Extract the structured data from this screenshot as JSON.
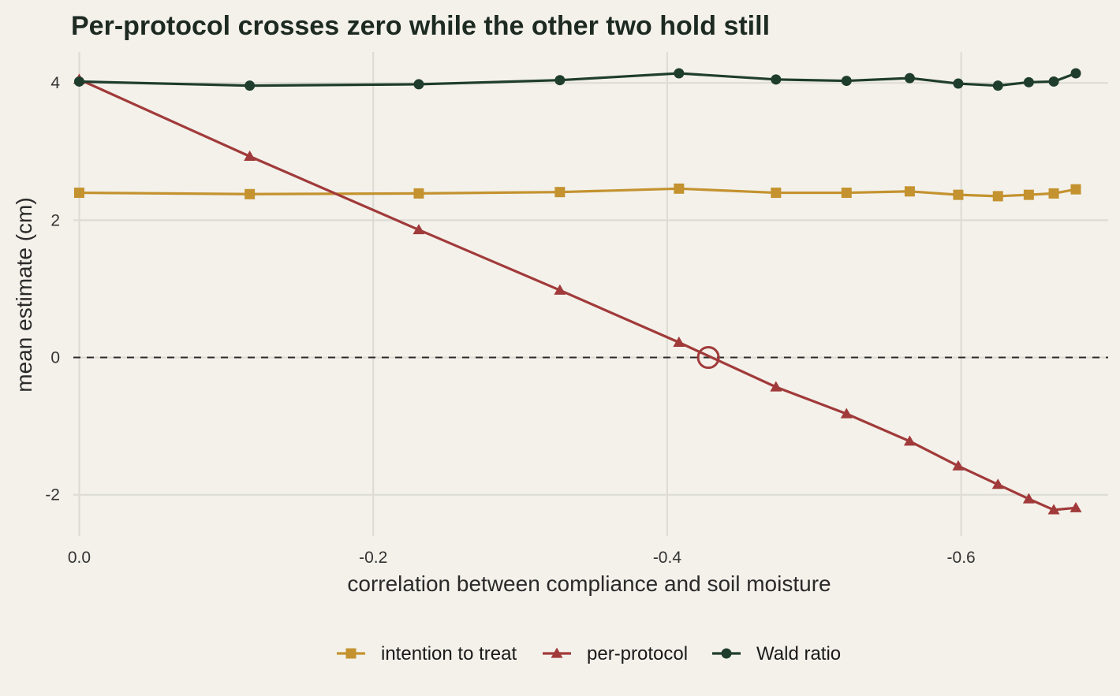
{
  "chart_data": {
    "type": "line",
    "title": "Per-protocol crosses zero while the other two hold still",
    "xlabel": "correlation between compliance and soil moisture",
    "ylabel": "mean estimate (cm)",
    "xlim": [
      0.004,
      -0.7
    ],
    "ylim": [
      -2.6,
      4.45
    ],
    "x_reversed": true,
    "x_ticks": [
      0.0,
      -0.2,
      -0.4,
      -0.6
    ],
    "x_tick_labels": [
      "0.0",
      "-0.2",
      "-0.4",
      "-0.6"
    ],
    "y_ticks": [
      4,
      2,
      0,
      -2
    ],
    "y_tick_labels": [
      "4",
      "2",
      "0",
      "-2"
    ],
    "grid": true,
    "reference_line": {
      "y": 0,
      "style": "dashed"
    },
    "highlight": {
      "x": -0.428,
      "y": 0,
      "marker": "open-circle",
      "color": "#a13a3a"
    },
    "legend_position": "bottom",
    "series": [
      {
        "name": "intention to treat",
        "color": "#c4922f",
        "marker": "square",
        "x": [
          0.0,
          -0.116,
          -0.231,
          -0.327,
          -0.408,
          -0.474,
          -0.522,
          -0.565,
          -0.598,
          -0.625,
          -0.646,
          -0.663,
          -0.678
        ],
        "y": [
          2.4,
          2.38,
          2.39,
          2.41,
          2.46,
          2.4,
          2.4,
          2.42,
          2.37,
          2.35,
          2.37,
          2.39,
          2.45
        ]
      },
      {
        "name": "per-protocol",
        "color": "#a13a3a",
        "marker": "triangle",
        "x": [
          0.0,
          -0.116,
          -0.231,
          -0.327,
          -0.408,
          -0.474,
          -0.522,
          -0.565,
          -0.598,
          -0.625,
          -0.646,
          -0.663,
          -0.678
        ],
        "y": [
          4.05,
          2.93,
          1.86,
          0.98,
          0.22,
          -0.43,
          -0.82,
          -1.22,
          -1.58,
          -1.85,
          -2.06,
          -2.22,
          -2.19
        ]
      },
      {
        "name": "Wald ratio",
        "color": "#1f3d2c",
        "marker": "circle",
        "x": [
          0.0,
          -0.116,
          -0.231,
          -0.327,
          -0.408,
          -0.474,
          -0.522,
          -0.565,
          -0.598,
          -0.625,
          -0.646,
          -0.663,
          -0.678
        ],
        "y": [
          4.02,
          3.96,
          3.98,
          4.04,
          4.14,
          4.05,
          4.03,
          4.07,
          3.99,
          3.96,
          4.01,
          4.02,
          4.14
        ]
      }
    ]
  }
}
